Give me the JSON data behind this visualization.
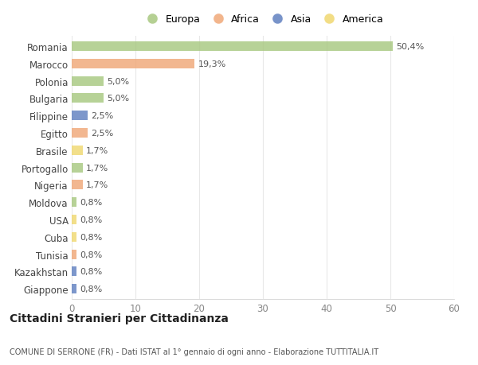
{
  "countries": [
    "Romania",
    "Marocco",
    "Polonia",
    "Bulgaria",
    "Filippine",
    "Egitto",
    "Brasile",
    "Portogallo",
    "Nigeria",
    "Moldova",
    "USA",
    "Cuba",
    "Tunisia",
    "Kazakhstan",
    "Giappone"
  ],
  "values": [
    50.4,
    19.3,
    5.0,
    5.0,
    2.5,
    2.5,
    1.7,
    1.7,
    1.7,
    0.8,
    0.8,
    0.8,
    0.8,
    0.8,
    0.8
  ],
  "labels": [
    "50,4%",
    "19,3%",
    "5,0%",
    "5,0%",
    "2,5%",
    "2,5%",
    "1,7%",
    "1,7%",
    "1,7%",
    "0,8%",
    "0,8%",
    "0,8%",
    "0,8%",
    "0,8%",
    "0,8%"
  ],
  "colors": [
    "#a8c880",
    "#f0a878",
    "#a8c880",
    "#a8c880",
    "#6080c0",
    "#f0a878",
    "#f0d870",
    "#a8c880",
    "#f0a878",
    "#a8c880",
    "#f0d870",
    "#f0d870",
    "#f0a878",
    "#6080c0",
    "#6080c0"
  ],
  "legend_labels": [
    "Europa",
    "Africa",
    "Asia",
    "America"
  ],
  "legend_colors": [
    "#a8c880",
    "#f0a878",
    "#6080c0",
    "#f0d870"
  ],
  "title": "Cittadini Stranieri per Cittadinanza",
  "subtitle": "COMUNE DI SERRONE (FR) - Dati ISTAT al 1° gennaio di ogni anno - Elaborazione TUTTITALIA.IT",
  "xlim": [
    0,
    60
  ],
  "xticks": [
    0,
    10,
    20,
    30,
    40,
    50,
    60
  ],
  "bg_color": "#ffffff",
  "grid_color": "#e8e8e8",
  "bar_height": 0.55
}
